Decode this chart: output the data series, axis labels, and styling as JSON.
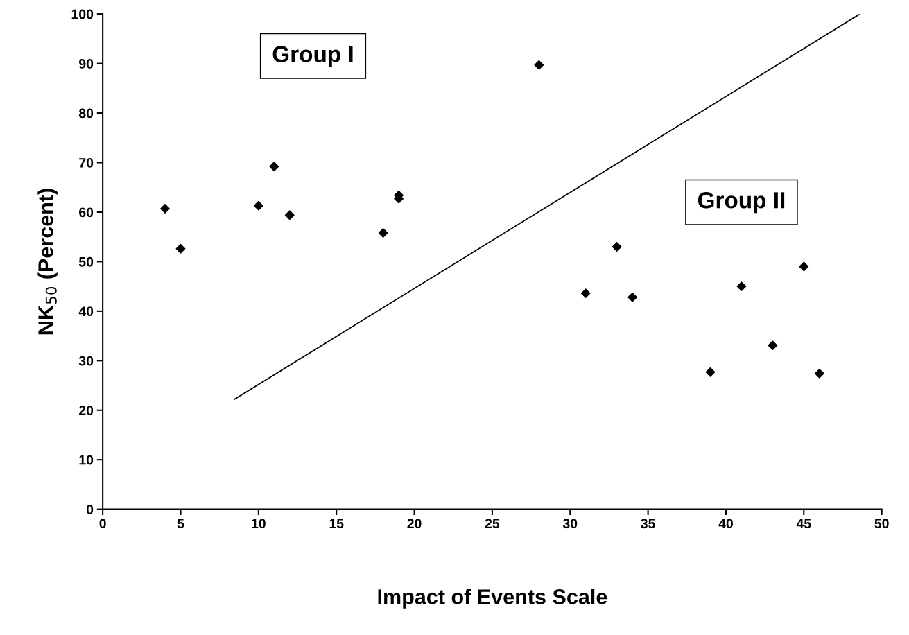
{
  "chart_data": {
    "type": "scatter",
    "xlabel": "Impact of Events Scale",
    "ylabel": "NK$_{50}$ (Percent)",
    "x": [
      4,
      5,
      10,
      11,
      12,
      18,
      19,
      19,
      28,
      31,
      33,
      34,
      39,
      41,
      43,
      45,
      46
    ],
    "series": [
      {
        "color": "#000000",
        "marker": "diamond",
        "values": [
          60.7,
          52.6,
          61.3,
          69.2,
          59.4,
          55.8,
          63.4,
          62.7,
          89.7,
          43.6,
          53.0,
          42.8,
          27.7,
          45.0,
          33.1,
          49.0,
          27.4
        ]
      },
      {
        "type": "line",
        "color": "#000000",
        "marker": "none",
        "line_style": "solid",
        "x": [
          8.45,
          48.6
        ],
        "values": [
          22.2,
          100
        ]
      }
    ],
    "annotations": [
      "Group I",
      "Group II"
    ],
    "xlim": [
      0,
      50
    ],
    "xticks": [
      0,
      5,
      10,
      15,
      20,
      25,
      30,
      35,
      40,
      45,
      50
    ],
    "ylim": [
      0,
      100
    ],
    "yticks": [
      0,
      10,
      20,
      30,
      40,
      50,
      60,
      70,
      80,
      90,
      100
    ],
    "grid": false,
    "legend": false
  }
}
